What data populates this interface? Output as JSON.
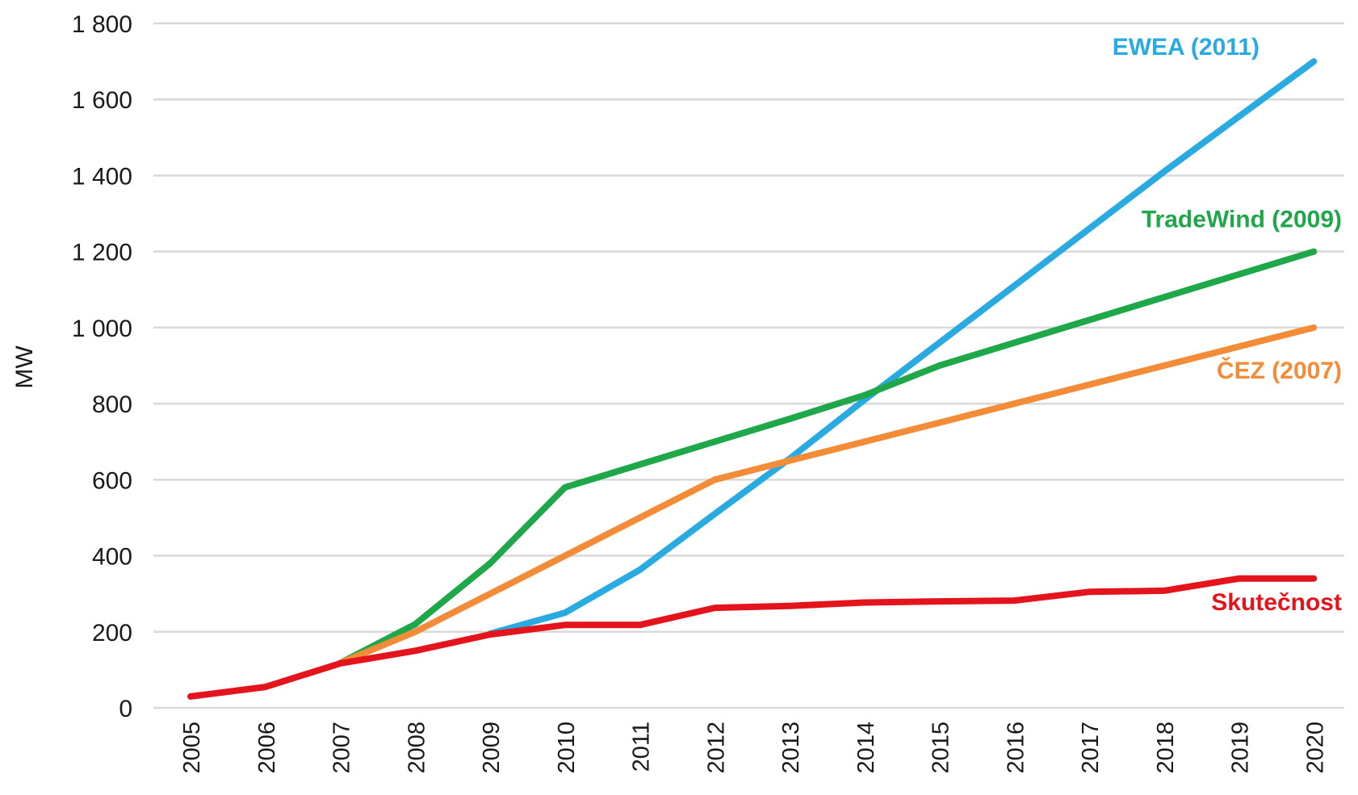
{
  "chart_data": {
    "type": "line",
    "title": "",
    "xlabel": "",
    "ylabel": "MW",
    "ylim": [
      0,
      1800
    ],
    "yticks": [
      0,
      200,
      400,
      600,
      800,
      1000,
      1200,
      1400,
      1600,
      1800
    ],
    "ytick_labels": [
      "0",
      "200",
      "400",
      "600",
      "800",
      "1 000",
      "1 200",
      "1 400",
      "1 600",
      "1 800"
    ],
    "grid": true,
    "legend": "none (series labelled directly at right end of lines)",
    "categories": [
      "2005",
      "2006",
      "2007",
      "2008",
      "2009",
      "2010",
      "2011",
      "2012",
      "2013",
      "2014",
      "2015",
      "2016",
      "2017",
      "2018",
      "2019",
      "2020"
    ],
    "series": [
      {
        "name": "EWEA (2011)",
        "color": "#29abe2",
        "values": [
          null,
          null,
          null,
          null,
          195,
          250,
          363,
          510,
          655,
          810,
          960,
          1110,
          1260,
          1410,
          1555,
          1700
        ]
      },
      {
        "name": "TradeWind (2009)",
        "color": "#1ea84a",
        "values": [
          null,
          null,
          118,
          220,
          380,
          580,
          640,
          700,
          760,
          822,
          900,
          960,
          1020,
          1080,
          1140,
          1200
        ]
      },
      {
        "name": "ČEZ (2007)",
        "color": "#f28c38",
        "values": [
          null,
          null,
          118,
          200,
          300,
          400,
          500,
          600,
          650,
          700,
          750,
          800,
          850,
          900,
          950,
          1000
        ]
      },
      {
        "name": "Skutečnost",
        "color": "#e3141b",
        "values": [
          30,
          55,
          117,
          150,
          193,
          218,
          218,
          263,
          268,
          277,
          280,
          282,
          305,
          308,
          340,
          340
        ]
      }
    ]
  }
}
